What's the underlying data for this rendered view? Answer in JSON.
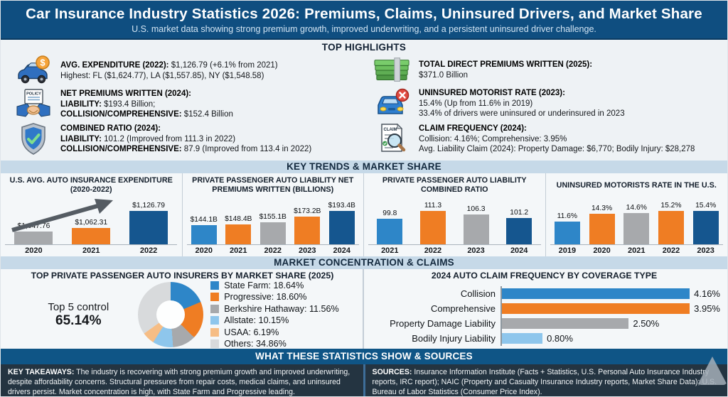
{
  "header": {
    "title": "Car Insurance Industry Statistics 2026: Premiums, Claims, Uninsured Drivers, and Market Share",
    "subtitle": "U.S. market data showing strong premium growth, improved underwriting, and a persistent uninsured driver challenge."
  },
  "highlights": {
    "title": "TOP HIGHLIGHTS",
    "left": [
      {
        "icon": "car-dollar",
        "lines": [
          {
            "b": "AVG. EXPENDITURE (2022):",
            "r": " $1,126.79 (+6.1% from 2021)"
          },
          {
            "b": "",
            "r": "Highest: FL ($1,624.77), LA ($1,557.85), NY ($1,548.58)"
          }
        ]
      },
      {
        "icon": "policy-handshake",
        "lines": [
          {
            "b": "NET PREMIUMS WRITTEN (2024):",
            "r": ""
          },
          {
            "b": "LIABILITY:",
            "r": " $193.4 Billion;"
          },
          {
            "b": "COLLISION/COMPREHENSIVE:",
            "r": " $152.4 Billion"
          }
        ]
      },
      {
        "icon": "shield-check",
        "lines": [
          {
            "b": "COMBINED RATIO (2024):",
            "r": ""
          },
          {
            "b": "LIABILITY:",
            "r": " 101.2 (Improved from 111.3 in 2022)"
          },
          {
            "b": "COLLISION/COMPREHENSIVE:",
            "r": " 87.9 (Improved from 113.4 in 2022)"
          }
        ]
      }
    ],
    "right": [
      {
        "icon": "money-stack",
        "lines": [
          {
            "b": "TOTAL DIRECT PREMIUMS WRITTEN (2025):",
            "r": ""
          },
          {
            "b": "",
            "r": "$371.0 Billion"
          }
        ]
      },
      {
        "icon": "car-x",
        "lines": [
          {
            "b": "UNINSURED MOTORIST RATE (2023):",
            "r": ""
          },
          {
            "b": "",
            "r": "15.4% (Up from 11.6% in 2019)"
          },
          {
            "b": "",
            "r": "33.4% of drivers were uninsured or underinsured in 2023"
          }
        ]
      },
      {
        "icon": "claim-search",
        "lines": [
          {
            "b": "CLAIM FREQUENCY (2024):",
            "r": ""
          },
          {
            "b": "",
            "r": "Collision: 4.16%; Comprehensive: 3.95%"
          },
          {
            "b": "",
            "r": "Avg. Liability Claim (2024): Property Damage: $6,770; Bodily Injury: $28,278"
          }
        ]
      }
    ]
  },
  "bands": {
    "trends": "KEY TRENDS & MARKET SHARE",
    "concentration": "MARKET CONCENTRATION & CLAIMS",
    "sources": "WHAT THESE STATISTICS SHOW & SOURCES"
  },
  "palette": {
    "blue": "#2e86c8",
    "orange": "#ef7d23",
    "gray": "#a7a9ac",
    "navy": "#15568f",
    "lightblue": "#8ec6ec",
    "lightorange": "#f6bd85",
    "lightgray": "#d8dadc",
    "header_blue": "#0f4e80",
    "band_blue": "#c6d9e8",
    "footer_dark": "#243441"
  },
  "chart_data": [
    {
      "type": "bar",
      "title": "U.S. AVG. AUTO INSURANCE EXPENDITURE (2020-2022)",
      "categories": [
        "2020",
        "2021",
        "2022"
      ],
      "values": [
        1047.76,
        1062.31,
        1126.79
      ],
      "labels": [
        "$1,047.76",
        "$1,062.31",
        "$1,126.79"
      ],
      "colors": [
        "gray",
        "orange",
        "navy"
      ],
      "ylim": [
        1000,
        1135
      ],
      "annotation": "upward trend arrow"
    },
    {
      "type": "bar",
      "title": "PRIVATE PASSENGER AUTO LIABILITY NET PREMIUMS WRITTEN (BILLIONS)",
      "categories": [
        "2020",
        "2021",
        "2022",
        "2023",
        "2024"
      ],
      "values": [
        144.1,
        148.4,
        155.1,
        173.2,
        193.4
      ],
      "labels": [
        "$144.1B",
        "$148.4B",
        "$155.1B",
        "$173.2B",
        "$193.4B"
      ],
      "colors": [
        "blue",
        "orange",
        "gray",
        "orange",
        "navy"
      ],
      "ylim": [
        80,
        200
      ]
    },
    {
      "type": "bar",
      "title": "PRIVATE PASSENGER AUTO LIABILITY COMBINED RATIO",
      "categories": [
        "2021",
        "2022",
        "2023",
        "2024"
      ],
      "values": [
        99.8,
        111.3,
        106.3,
        101.2
      ],
      "labels": [
        "99.8",
        "111.3",
        "106.3",
        "101.2"
      ],
      "colors": [
        "blue",
        "orange",
        "gray",
        "navy"
      ],
      "ylim": [
        60,
        115
      ]
    },
    {
      "type": "bar",
      "title": "UNINSURED MOTORISTS RATE IN THE U.S.",
      "categories": [
        "2019",
        "2020",
        "2021",
        "2022",
        "2023"
      ],
      "values": [
        11.6,
        14.3,
        14.6,
        15.2,
        15.4
      ],
      "labels": [
        "11.6%",
        "14.3%",
        "14.6%",
        "15.2%",
        "15.4%"
      ],
      "colors": [
        "blue",
        "orange",
        "gray",
        "orange",
        "navy"
      ],
      "ylim": [
        4,
        16
      ]
    },
    {
      "type": "pie",
      "title": "TOP PRIVATE PASSENGER AUTO INSURERS BY MARKET SHARE (2025)",
      "annotation_label": "Top 5 control",
      "annotation_value": "65.14%",
      "slices": [
        {
          "label": "State Farm",
          "value": 18.64,
          "display": "State Farm: 18.64%",
          "color": "blue"
        },
        {
          "label": "Progressive",
          "value": 18.6,
          "display": "Progressive: 18.60%",
          "color": "orange"
        },
        {
          "label": "Berkshire Hathaway",
          "value": 11.56,
          "display": "Berkshire Hathaway: 11.56%",
          "color": "gray"
        },
        {
          "label": "Allstate",
          "value": 10.15,
          "display": "Allstate: 10.15%",
          "color": "lightblue"
        },
        {
          "label": "USAA",
          "value": 6.19,
          "display": "USAA: 6.19%",
          "color": "lightorange"
        },
        {
          "label": "Others",
          "value": 34.86,
          "display": "Others: 34.86%",
          "color": "lightgray"
        }
      ]
    },
    {
      "type": "bar",
      "orientation": "horizontal",
      "title": "2024 AUTO CLAIM FREQUENCY BY COVERAGE TYPE",
      "categories": [
        "Collision",
        "Comprehensive",
        "Property Damage Liability",
        "Bodily Injury Liability"
      ],
      "values": [
        4.16,
        3.95,
        2.5,
        0.8
      ],
      "labels": [
        "4.16%",
        "3.95%",
        "2.50%",
        "0.80%"
      ],
      "colors": [
        "blue",
        "orange",
        "gray",
        "lightblue"
      ],
      "xlim": [
        0,
        4.3
      ]
    }
  ],
  "footer": {
    "takeaways_label": "KEY TAKEAWAYS:",
    "takeaways_text": " The industry is recovering with strong premium growth and improved underwriting, despite affordability concerns. Structural pressures from repair costs, medical claims, and uninsured drivers persist. Market concentration is high, with State Farm and Progressive leading.",
    "sources_label": "SOURCES:",
    "sources_text": " Insurance Information Institute (Facts + Statistics, U.S. Personal Auto Insurance Industry reports, IRC report); NAIC (Property and Casualty Insurance Industry reports, Market Share Data); U.S. Bureau of Labor Statistics (Consumer Price Index)."
  }
}
